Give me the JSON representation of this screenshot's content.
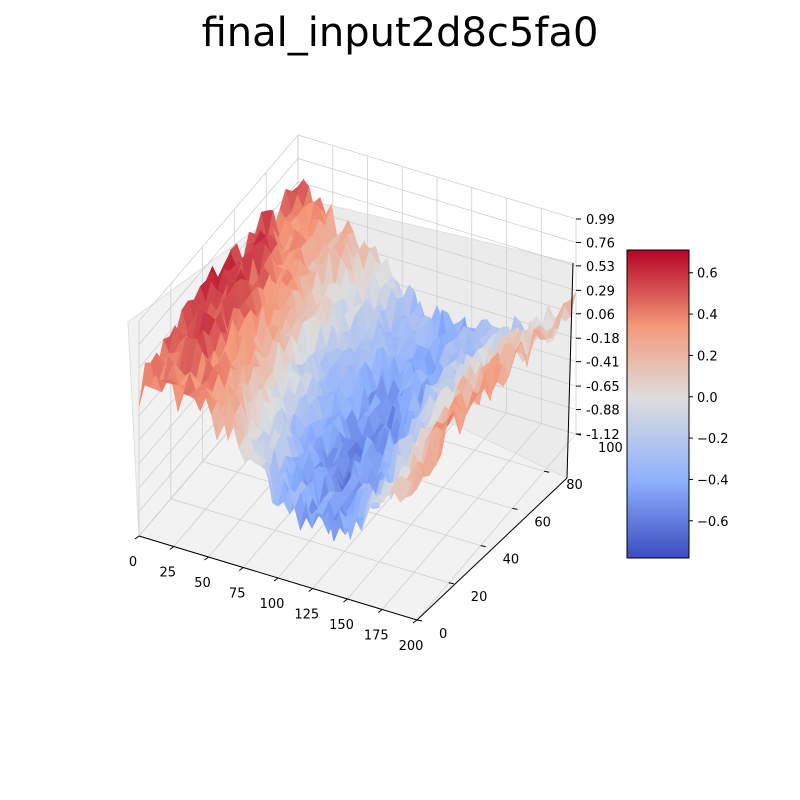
{
  "chart_data": {
    "type": "surface3d",
    "title": "final_input2d8c5fa0",
    "colormap": "coolwarm",
    "colormap_colors": [
      "#3b4cc0",
      "#8db0fe",
      "#dddddd",
      "#f49a7b",
      "#b40426"
    ],
    "x_ticks": [
      "0",
      "25",
      "50",
      "75",
      "100",
      "125",
      "150",
      "175",
      "200"
    ],
    "y_ticks": [
      "0",
      "20",
      "40",
      "60",
      "80",
      "100"
    ],
    "z_ticks": [
      "-1.12",
      "-0.88",
      "-0.65",
      "-0.41",
      "-0.18",
      "0.06",
      "0.29",
      "0.53",
      "0.76",
      "0.99"
    ],
    "xlim": [
      0,
      200
    ],
    "ylim": [
      0,
      100
    ],
    "zlim": [
      -1.12,
      0.99
    ],
    "colorbar_ticks": [
      "0.6",
      "0.4",
      "0.2",
      "0.0",
      "−0.2",
      "−0.4",
      "−0.6"
    ],
    "colorbar_range": [
      -0.78,
      0.71
    ],
    "grid": true
  }
}
